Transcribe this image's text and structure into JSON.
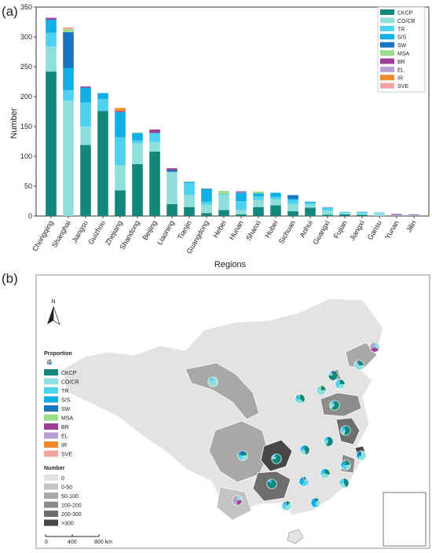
{
  "panel_a_label": "(a)",
  "panel_b_label": "(b)",
  "colors": {
    "CKCP": "#12877a",
    "CO/CR": "#8fe0dd",
    "TR": "#4fd1f0",
    "S/S": "#12aee6",
    "SW": "#1a74bf",
    "MSA": "#9fdc8a",
    "BR": "#9c3f96",
    "EL": "#b59fd3",
    "IR": "#f2892d",
    "SVE": "#f4a3a3"
  },
  "chart_data": {
    "type": "bar",
    "stacked": true,
    "xlabel": "Regions",
    "ylabel": "Number",
    "ylim": [
      0,
      350
    ],
    "yticks": [
      0,
      50,
      100,
      150,
      200,
      250,
      300,
      350
    ],
    "legend_position": "top-right",
    "categories": [
      "Chongqing",
      "Shanghai",
      "Jiangsu",
      "Guizhou",
      "Zhejiang",
      "Shandong",
      "Beijing",
      "Liaoning",
      "Tianjin",
      "Guangdong",
      "Hebei",
      "Hunan",
      "Shanxi",
      "Hubei",
      "Sichuan",
      "Anhui",
      "Guangxi",
      "Fujian",
      "Jiangxi",
      "Gansu",
      "Yunan",
      "Jilin"
    ],
    "series": [
      {
        "name": "CKCP",
        "values": [
          242,
          0,
          119,
          176,
          43,
          87,
          108,
          20,
          15,
          5,
          10,
          3,
          15,
          18,
          8,
          14,
          2,
          3,
          2,
          0,
          0,
          0
        ]
      },
      {
        "name": "CO/CR",
        "values": [
          42,
          193,
          31,
          0,
          42,
          35,
          16,
          54,
          20,
          14,
          25,
          7,
          12,
          10,
          12,
          5,
          7,
          2,
          3,
          5,
          1,
          1
        ]
      },
      {
        "name": "TR",
        "values": [
          23,
          18,
          40,
          20,
          47,
          5,
          15,
          0,
          20,
          5,
          2,
          15,
          6,
          4,
          7,
          3,
          4,
          2,
          1,
          1,
          0,
          0
        ]
      },
      {
        "name": "S/S",
        "values": [
          22,
          37,
          25,
          10,
          42,
          12,
          0,
          0,
          2,
          21,
          0,
          14,
          5,
          7,
          2,
          2,
          1,
          0,
          1,
          0,
          0,
          0
        ]
      },
      {
        "name": "SW",
        "values": [
          0,
          60,
          0,
          0,
          0,
          0,
          0,
          3,
          0,
          1,
          0,
          0,
          0,
          0,
          6,
          0,
          0,
          0,
          0,
          0,
          0,
          0
        ]
      },
      {
        "name": "MSA",
        "values": [
          0,
          5,
          0,
          0,
          0,
          1,
          0,
          0,
          1,
          0,
          5,
          0,
          3,
          0,
          0,
          0,
          0,
          0,
          0,
          0,
          0,
          0
        ]
      },
      {
        "name": "BR",
        "values": [
          3,
          0,
          2,
          0,
          2,
          0,
          6,
          3,
          0,
          0,
          0,
          1,
          0,
          0,
          0,
          0,
          0,
          0,
          0,
          0,
          1,
          1
        ]
      },
      {
        "name": "EL",
        "values": [
          0,
          0,
          0,
          0,
          0,
          0,
          0,
          0,
          0,
          0,
          0,
          2,
          0,
          0,
          0,
          0,
          1,
          0,
          0,
          0,
          2,
          1
        ]
      },
      {
        "name": "IR",
        "values": [
          0,
          0,
          0,
          0,
          5,
          0,
          0,
          0,
          0,
          0,
          0,
          0,
          0,
          0,
          0,
          0,
          0,
          0,
          0,
          0,
          0,
          0
        ]
      },
      {
        "name": "SVE",
        "values": [
          0,
          3,
          0,
          0,
          0,
          0,
          0,
          0,
          0,
          0,
          0,
          0,
          0,
          0,
          0,
          0,
          0,
          0,
          0,
          0,
          0,
          0
        ]
      }
    ]
  },
  "map": {
    "north_label": "N",
    "proportion_title": "Proportion",
    "categories": [
      "CKCP",
      "CO/CR",
      "TR",
      "S/S",
      "SW",
      "MSA",
      "BR",
      "EL",
      "IR",
      "SVE"
    ],
    "number_title": "Number",
    "number_classes": [
      {
        "label": "0",
        "color": "#e3e3e3"
      },
      {
        "label": "0-50",
        "color": "#c4c4c4"
      },
      {
        "label": "50-100",
        "color": "#a8a8a8"
      },
      {
        "label": "100-200",
        "color": "#8c8c8c"
      },
      {
        "label": "200-300",
        "color": "#6e6e6e"
      },
      {
        "label": ">300",
        "color": "#474747"
      }
    ],
    "scale_ticks": [
      "0",
      "400",
      "800 km"
    ]
  }
}
